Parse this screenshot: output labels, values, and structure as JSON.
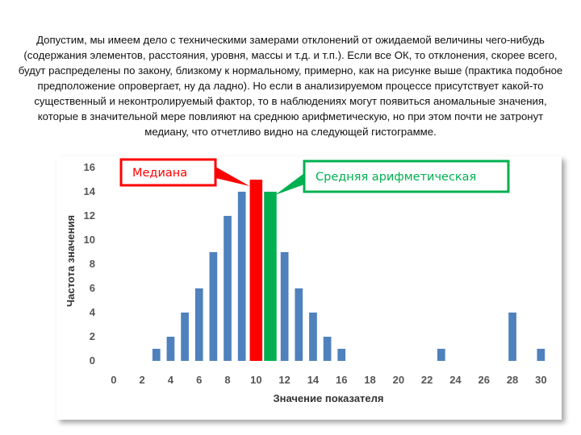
{
  "intro_text": "Допустим, мы имеем дело с техническими замерами отклонений от ожидаемой величины чего-нибудь (содержания элементов, расстояния, уровня, массы и т.д. и т.п.). Если все ОК, то отклонения, скорее всего, будут распределены по закону, близкому к нормальному, примерно, как на рисунке выше (практика подобное предположение опровергает, ну да ладно). Но если в анализируемом процессе присутствует какой-то существенный и неконтролируемый фактор, то в наблюдениях могут появиться аномальные значения, которые в значительной мере повлияют на среднюю арифметическую, но при этом почти не затронут медиану, что отчетливо видно на следующей гистограмме.",
  "chart_data": {
    "type": "bar",
    "xlabel": "Значение показателя",
    "ylabel": "Частота значения",
    "xlim": [
      -0.5,
      31
    ],
    "ylim": [
      0,
      16
    ],
    "x_ticks": [
      0,
      2,
      4,
      6,
      8,
      10,
      12,
      14,
      16,
      18,
      20,
      22,
      24,
      26,
      28,
      30
    ],
    "y_ticks": [
      0,
      2,
      4,
      6,
      8,
      10,
      12,
      14,
      16
    ],
    "bar_color": "#4f81bd",
    "x": [
      3,
      4,
      5,
      6,
      7,
      8,
      9,
      10,
      11,
      12,
      13,
      14,
      15,
      16,
      17,
      23,
      28,
      30
    ],
    "values": [
      1,
      2,
      4,
      6,
      9,
      12,
      14,
      15,
      14,
      9,
      6,
      4,
      2,
      1,
      0,
      1,
      4,
      1
    ],
    "highlights": [
      {
        "x": 10,
        "value": 15,
        "label": "Медиана",
        "color": "#ff0000"
      },
      {
        "x": 11,
        "value": 14,
        "label": "Средняя арифметическая",
        "color": "#00b050"
      }
    ]
  }
}
